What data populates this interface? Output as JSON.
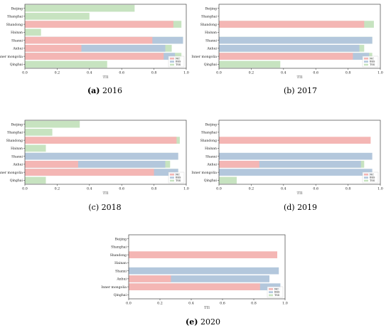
{
  "colors": {
    "NC": "#f4b6b4",
    "BSS": "#b3c7dc",
    "TSS": "#c7e3c0"
  },
  "captions": [
    {
      "tag": "(a)",
      "year": "2016"
    },
    {
      "tag": "(b)",
      "year": "2017"
    },
    {
      "tag": "(c)",
      "year": "2018"
    },
    {
      "tag": "(d)",
      "year": "2019"
    },
    {
      "tag": "(e)",
      "year": "2020"
    }
  ],
  "chart_data": [
    {
      "type": "bar",
      "orientation": "horizontal",
      "stacking": "overlay",
      "categories": [
        "Beijing",
        "Shanghai",
        "Shandong",
        "Hainan",
        "Shanxi",
        "Anhui",
        "Inner mongolia",
        "Qinghai"
      ],
      "xlabel": "TTI",
      "xlim": [
        0,
        1
      ],
      "xticks": [
        "0.0",
        "0.2",
        "0.4",
        "0.6",
        "0.8",
        "1.0"
      ],
      "legend": "bottom-right",
      "series": [
        {
          "name": "TSS",
          "values": [
            0.68,
            0.4,
            0.97,
            0.1,
            0.98,
            0.91,
            0.97,
            0.51
          ]
        },
        {
          "name": "BSS",
          "values": [
            0,
            0,
            0,
            0,
            0.98,
            0.87,
            0.93,
            0
          ]
        },
        {
          "name": "NC",
          "values": [
            0,
            0,
            0.92,
            0,
            0.79,
            0.35,
            0.86,
            0
          ]
        }
      ]
    },
    {
      "type": "bar",
      "orientation": "horizontal",
      "stacking": "overlay",
      "categories": [
        "Beijing",
        "Shanghai",
        "Shandong",
        "Hainan",
        "Shanxi",
        "Anhui",
        "Inner mongolia",
        "Qinghai"
      ],
      "xlabel": "TTI",
      "xlim": [
        0,
        1
      ],
      "xticks": [
        "0.0",
        "0.2",
        "0.4",
        "0.6",
        "0.8",
        "1.0"
      ],
      "legend": "bottom-right",
      "series": [
        {
          "name": "TSS",
          "values": [
            0,
            0,
            0.96,
            0,
            0.95,
            0.9,
            0.95,
            0.38
          ]
        },
        {
          "name": "BSS",
          "values": [
            0,
            0,
            0,
            0,
            0.95,
            0.87,
            0.93,
            0
          ]
        },
        {
          "name": "NC",
          "values": [
            0,
            0,
            0.9,
            0,
            0,
            0,
            0.83,
            0
          ]
        }
      ]
    },
    {
      "type": "bar",
      "orientation": "horizontal",
      "stacking": "overlay",
      "categories": [
        "Beijing",
        "Shanghai",
        "Shandong",
        "Hainan",
        "Shanxi",
        "Anhui",
        "Inner mongolia",
        "Qinghai"
      ],
      "xlabel": "TTI",
      "xlim": [
        0,
        1
      ],
      "xticks": [
        "0.0",
        "0.2",
        "0.4",
        "0.6",
        "0.8",
        "1.0"
      ],
      "legend": "bottom-right",
      "series": [
        {
          "name": "TSS",
          "values": [
            0.34,
            0.17,
            0.96,
            0.13,
            0.95,
            0.9,
            0.95,
            0.13
          ]
        },
        {
          "name": "BSS",
          "values": [
            0,
            0,
            0,
            0,
            0.95,
            0.87,
            0.95,
            0
          ]
        },
        {
          "name": "NC",
          "values": [
            0,
            0,
            0.94,
            0,
            0,
            0.33,
            0.8,
            0
          ]
        }
      ]
    },
    {
      "type": "bar",
      "orientation": "horizontal",
      "stacking": "overlay",
      "categories": [
        "Beijing",
        "Shanghai",
        "Shandong",
        "Hainan",
        "Shanxi",
        "Anhui",
        "Inner mongolia",
        "Qinghai"
      ],
      "xlabel": "TTI",
      "xlim": [
        0,
        1
      ],
      "xticks": [
        "0.0",
        "0.2",
        "0.4",
        "0.6",
        "0.8",
        "1.0"
      ],
      "legend": "bottom-right",
      "series": [
        {
          "name": "TSS",
          "values": [
            0,
            0,
            0,
            0,
            0,
            0.9,
            0,
            0.11
          ]
        },
        {
          "name": "BSS",
          "values": [
            0,
            0,
            0,
            0,
            0.95,
            0.88,
            0.95,
            0
          ]
        },
        {
          "name": "NC",
          "values": [
            0,
            0,
            0.94,
            0,
            0,
            0.25,
            0,
            0
          ]
        }
      ]
    },
    {
      "type": "bar",
      "orientation": "horizontal",
      "stacking": "overlay",
      "categories": [
        "Beijing",
        "Shanghai",
        "Shandong",
        "Hainan",
        "Shanxi",
        "Anhui",
        "Inner mongolia",
        "Qinghai"
      ],
      "xlabel": "TTI",
      "xlim": [
        0,
        1
      ],
      "xticks": [
        "0.0",
        "0.2",
        "0.4",
        "0.6",
        "0.8",
        "1.0"
      ],
      "legend": "bottom-right",
      "series": [
        {
          "name": "TSS",
          "values": [
            0,
            0,
            0,
            0,
            0,
            0,
            0,
            0
          ]
        },
        {
          "name": "BSS",
          "values": [
            0,
            0,
            0,
            0,
            0.96,
            0.9,
            0.97,
            0
          ]
        },
        {
          "name": "NC",
          "values": [
            0,
            0,
            0.95,
            0,
            0,
            0.27,
            0.84,
            0
          ]
        }
      ]
    }
  ]
}
